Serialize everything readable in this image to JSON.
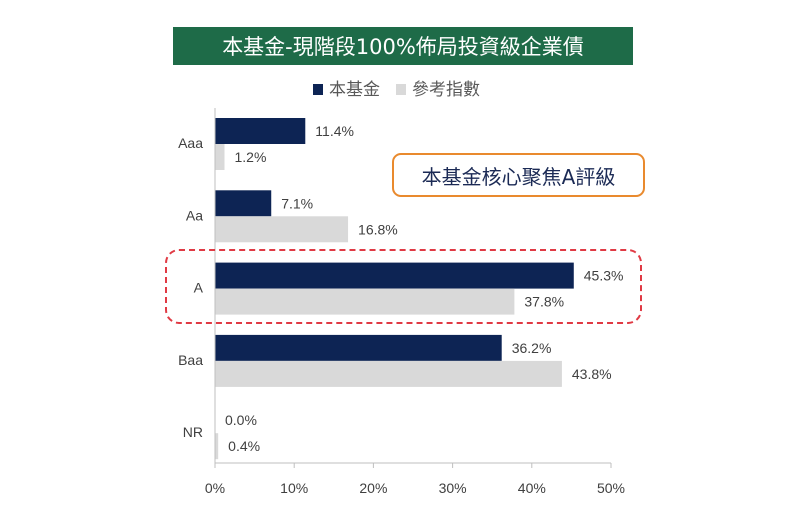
{
  "chart_data": {
    "type": "bar",
    "orientation": "horizontal",
    "title": "本基金-現階段100%佈局投資級企業債",
    "categories": [
      "Aaa",
      "Aa",
      "A",
      "Baa",
      "NR"
    ],
    "series": [
      {
        "name": "本基金",
        "values": [
          11.4,
          7.1,
          45.3,
          36.2,
          0.0
        ],
        "labels": [
          "11.4%",
          "7.1%",
          "45.3%",
          "36.2%",
          "0.0%"
        ],
        "color": "#0d2454"
      },
      {
        "name": "參考指數",
        "values": [
          1.2,
          16.8,
          37.8,
          43.8,
          0.4
        ],
        "labels": [
          "1.2%",
          "16.8%",
          "37.8%",
          "43.8%",
          "0.4%"
        ],
        "color": "#d9d9d9"
      }
    ],
    "xlim": [
      0,
      50
    ],
    "x_ticks": [
      "0%",
      "10%",
      "20%",
      "30%",
      "40%",
      "50%"
    ],
    "grid": false,
    "legend_position": "top",
    "annotation": "本基金核心聚焦A評級",
    "highlighted_category": "A",
    "colors": {
      "title_background": "#1e6b48",
      "callout_border": "#e98a2e",
      "highlight_border": "#e03a44"
    }
  }
}
